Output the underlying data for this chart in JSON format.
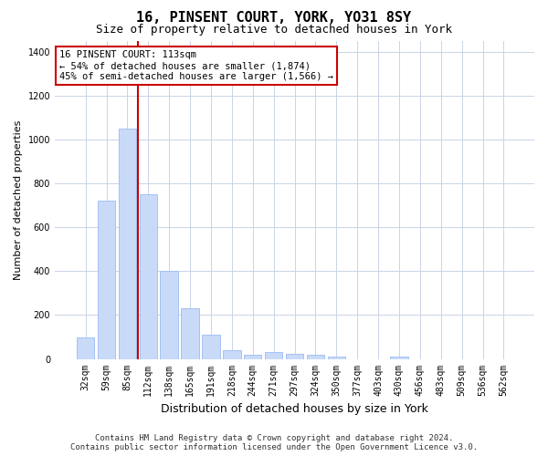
{
  "title": "16, PINSENT COURT, YORK, YO31 8SY",
  "subtitle": "Size of property relative to detached houses in York",
  "xlabel": "Distribution of detached houses by size in York",
  "ylabel": "Number of detached properties",
  "categories": [
    "32sqm",
    "59sqm",
    "85sqm",
    "112sqm",
    "138sqm",
    "165sqm",
    "191sqm",
    "218sqm",
    "244sqm",
    "271sqm",
    "297sqm",
    "324sqm",
    "350sqm",
    "377sqm",
    "403sqm",
    "430sqm",
    "456sqm",
    "483sqm",
    "509sqm",
    "536sqm",
    "562sqm"
  ],
  "values": [
    100,
    720,
    1050,
    750,
    400,
    230,
    110,
    40,
    20,
    30,
    25,
    20,
    10,
    0,
    0,
    10,
    0,
    0,
    0,
    0,
    0
  ],
  "bar_color": "#c9daf8",
  "bar_edge_color": "#a4c2f4",
  "marker_line_color": "#cc0000",
  "annotation_text": "16 PINSENT COURT: 113sqm\n← 54% of detached houses are smaller (1,874)\n45% of semi-detached houses are larger (1,566) →",
  "annotation_box_color": "#ffffff",
  "annotation_box_edge_color": "#cc0000",
  "ylim": [
    0,
    1450
  ],
  "yticks": [
    0,
    200,
    400,
    600,
    800,
    1000,
    1200,
    1400
  ],
  "bg_color": "#ffffff",
  "grid_color": "#c9d4e8",
  "footer_line1": "Contains HM Land Registry data © Crown copyright and database right 2024.",
  "footer_line2": "Contains public sector information licensed under the Open Government Licence v3.0.",
  "title_fontsize": 11,
  "subtitle_fontsize": 9,
  "xlabel_fontsize": 9,
  "ylabel_fontsize": 8,
  "tick_fontsize": 7,
  "annotation_fontsize": 7.5,
  "footer_fontsize": 6.5
}
